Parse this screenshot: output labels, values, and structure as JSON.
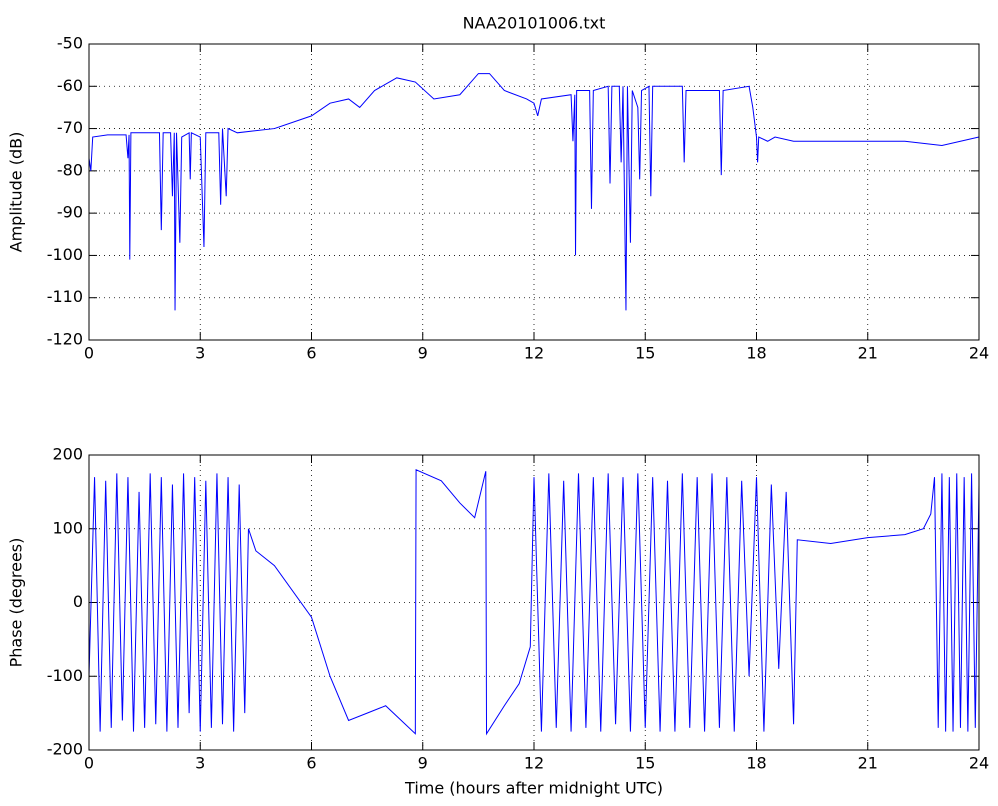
{
  "chart_data": [
    {
      "type": "line",
      "title": "NAA20101006.txt",
      "ylabel": "Amplitude (dB)",
      "color": "#0000ff",
      "grid": true,
      "xlim": [
        0,
        24
      ],
      "xticks": [
        0,
        3,
        6,
        9,
        12,
        15,
        18,
        21,
        24
      ],
      "ylim": [
        -120,
        -50
      ],
      "yticks": [
        -120,
        -110,
        -100,
        -90,
        -80,
        -70,
        -60,
        -50
      ],
      "x": [
        0,
        0.05,
        0.1,
        0.5,
        1.0,
        1.05,
        1.08,
        1.1,
        1.13,
        1.5,
        1.9,
        1.95,
        2.0,
        2.2,
        2.25,
        2.3,
        2.32,
        2.36,
        2.45,
        2.5,
        2.7,
        2.73,
        2.76,
        3.0,
        3.1,
        3.15,
        3.5,
        3.55,
        3.6,
        3.7,
        3.75,
        4.0,
        5,
        6,
        6.5,
        7,
        7.3,
        7.7,
        8.3,
        8.8,
        9.3,
        10,
        10.2,
        10.5,
        10.8,
        11.2,
        11.8,
        12,
        12.1,
        12.2,
        13,
        13.05,
        13.1,
        13.12,
        13.15,
        13.5,
        13.55,
        13.6,
        14,
        14.05,
        14.1,
        14.3,
        14.35,
        14.4,
        14.48,
        14.52,
        14.6,
        14.65,
        14.8,
        14.85,
        14.9,
        15.1,
        15.15,
        15.2,
        16,
        16.05,
        16.1,
        17,
        17.05,
        17.1,
        17.8,
        17.9,
        18,
        18.03,
        18.06,
        18.3,
        18.5,
        19,
        20,
        21,
        22,
        23,
        23.5,
        24
      ],
      "values": [
        -77,
        -80,
        -72,
        -71.5,
        -71.5,
        -77,
        -71.5,
        -101,
        -71,
        -71,
        -71,
        -94,
        -71,
        -71,
        -86,
        -71,
        -113,
        -71,
        -97,
        -72,
        -71,
        -82,
        -71,
        -72,
        -98,
        -71,
        -71,
        -88,
        -70,
        -86,
        -70,
        -71,
        -70,
        -67,
        -64,
        -63,
        -65,
        -61,
        -58,
        -59,
        -63,
        -62,
        -60,
        -57,
        -57,
        -61,
        -63,
        -64,
        -67,
        -63,
        -62,
        -73,
        -62,
        -100,
        -61,
        -61,
        -89,
        -61,
        -60,
        -83,
        -60,
        -60,
        -78,
        -60,
        -113,
        -60,
        -97,
        -61,
        -65,
        -82,
        -61,
        -60,
        -86,
        -60,
        -60,
        -78,
        -61,
        -61,
        -81,
        -61,
        -60,
        -65,
        -72,
        -78,
        -72,
        -73,
        -72,
        -73,
        -73,
        -73,
        -73,
        -74,
        -73,
        -72
      ]
    },
    {
      "type": "line",
      "ylabel": "Phase (degrees)",
      "xlabel": "Time (hours after midnight UTC)",
      "color": "#0000ff",
      "grid": true,
      "xlim": [
        0,
        24
      ],
      "xticks": [
        0,
        3,
        6,
        9,
        12,
        15,
        18,
        21,
        24
      ],
      "ylim": [
        -200,
        200
      ],
      "yticks": [
        -200,
        -100,
        0,
        100,
        200
      ],
      "x": [
        0,
        0.15,
        0.3,
        0.45,
        0.6,
        0.75,
        0.9,
        1.05,
        1.2,
        1.35,
        1.5,
        1.65,
        1.8,
        1.95,
        2.1,
        2.25,
        2.4,
        2.55,
        2.7,
        2.85,
        3.0,
        3.15,
        3.3,
        3.45,
        3.6,
        3.75,
        3.9,
        4.05,
        4.2,
        4.3,
        4.5,
        5,
        6,
        6.5,
        7,
        7.5,
        8,
        8.8,
        8.82,
        9.5,
        10,
        10.4,
        10.7,
        10.72,
        11.2,
        11.6,
        11.9,
        12.0,
        12.2,
        12.4,
        12.6,
        12.8,
        13.0,
        13.2,
        13.4,
        13.6,
        13.8,
        14.0,
        14.2,
        14.4,
        14.6,
        14.8,
        15.0,
        15.2,
        15.4,
        15.6,
        15.8,
        16.0,
        16.2,
        16.4,
        16.6,
        16.8,
        17.0,
        17.2,
        17.4,
        17.6,
        17.8,
        18.0,
        18.2,
        18.4,
        18.6,
        18.8,
        19.0,
        19.1,
        20,
        21,
        22,
        22.5,
        22.7,
        22.8,
        22.9,
        23.0,
        23.1,
        23.2,
        23.3,
        23.4,
        23.5,
        23.6,
        23.7,
        23.8,
        23.9,
        24.0
      ],
      "values": [
        -100,
        170,
        -175,
        165,
        -170,
        175,
        -160,
        170,
        -175,
        150,
        -170,
        175,
        -165,
        170,
        -175,
        160,
        -170,
        175,
        -150,
        170,
        -175,
        165,
        -170,
        175,
        -165,
        170,
        -175,
        160,
        -150,
        100,
        70,
        50,
        -20,
        -100,
        -160,
        -150,
        -140,
        -178,
        180,
        165,
        135,
        115,
        178,
        -178,
        -140,
        -110,
        -60,
        170,
        -175,
        175,
        -170,
        165,
        -175,
        175,
        -170,
        170,
        -175,
        175,
        -165,
        170,
        -175,
        175,
        -170,
        170,
        -175,
        165,
        -175,
        175,
        -170,
        170,
        -175,
        175,
        -170,
        170,
        -175,
        165,
        -100,
        170,
        -175,
        160,
        -90,
        150,
        -165,
        85,
        80,
        88,
        92,
        100,
        120,
        170,
        -170,
        175,
        -175,
        170,
        -175,
        175,
        -170,
        170,
        -175,
        175,
        -170,
        160
      ]
    }
  ]
}
